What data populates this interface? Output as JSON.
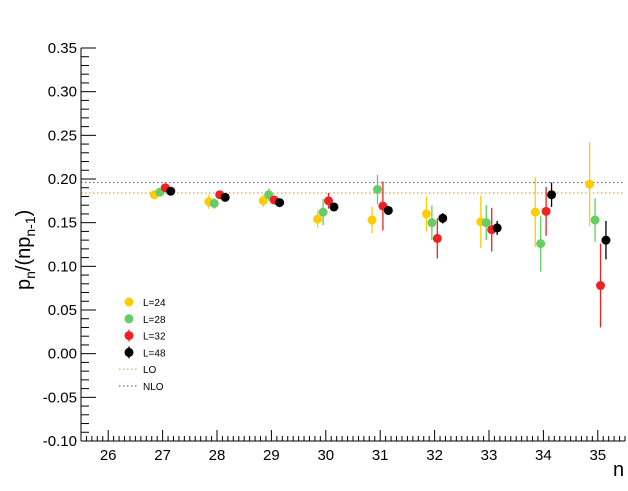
{
  "chart_data": {
    "type": "scatter",
    "xlabel": "n",
    "ylabel": {
      "main": "p",
      "sub1": "n",
      "mid": "/(np",
      "sub2": "n-1",
      "end": ")"
    },
    "xlim": [
      25.5,
      35.5
    ],
    "ylim": [
      -0.1,
      0.35
    ],
    "x_ticks": [
      "26",
      "27",
      "28",
      "29",
      "30",
      "31",
      "32",
      "33",
      "34",
      "35"
    ],
    "y_ticks": [
      "-0.10",
      "-0.05",
      "0.00",
      "0.05",
      "0.10",
      "0.15",
      "0.20",
      "0.25",
      "0.30",
      "0.35"
    ],
    "legend_position": "lower-left",
    "series": [
      {
        "name": "L=24",
        "color": "#ffcc00",
        "x": [
          27,
          28,
          29,
          30,
          31,
          32,
          33,
          34,
          35
        ],
        "y": [
          0.182,
          0.174,
          0.175,
          0.154,
          0.153,
          0.16,
          0.151,
          0.162,
          0.194
        ],
        "err": [
          0.004,
          0.008,
          0.007,
          0.01,
          0.015,
          0.02,
          0.03,
          0.04,
          0.048
        ]
      },
      {
        "name": "L=28",
        "color": "#66cc66",
        "x": [
          27,
          28,
          29,
          30,
          31,
          32,
          33,
          34,
          35
        ],
        "y": [
          0.185,
          0.172,
          0.182,
          0.162,
          0.188,
          0.15,
          0.15,
          0.126,
          0.153
        ],
        "err": [
          0.004,
          0.006,
          0.007,
          0.015,
          0.017,
          0.02,
          0.02,
          0.032,
          0.025
        ]
      },
      {
        "name": "L=32",
        "color": "#ee2222",
        "x": [
          27,
          28,
          29,
          30,
          31,
          32,
          33,
          34,
          35
        ],
        "y": [
          0.19,
          0.182,
          0.176,
          0.175,
          0.169,
          0.132,
          0.142,
          0.163,
          0.078
        ],
        "err": [
          0.004,
          0.004,
          0.005,
          0.009,
          0.028,
          0.023,
          0.025,
          0.028,
          0.048
        ]
      },
      {
        "name": "L=48",
        "color": "#000000",
        "x": [
          27,
          28,
          29,
          30,
          31,
          32,
          33,
          34,
          35
        ],
        "y": [
          0.186,
          0.179,
          0.173,
          0.168,
          0.164,
          0.155,
          0.144,
          0.182,
          0.13
        ],
        "err": [
          0.003,
          0.003,
          0.003,
          0.004,
          0.005,
          0.006,
          0.008,
          0.014,
          0.022
        ]
      }
    ],
    "reference_lines": [
      {
        "name": "LO",
        "y": 0.184,
        "color": "#ff9933",
        "style": "dotted"
      },
      {
        "name": "NLO",
        "y": 0.196,
        "color": "#6666cc",
        "style": "dotted"
      }
    ]
  }
}
